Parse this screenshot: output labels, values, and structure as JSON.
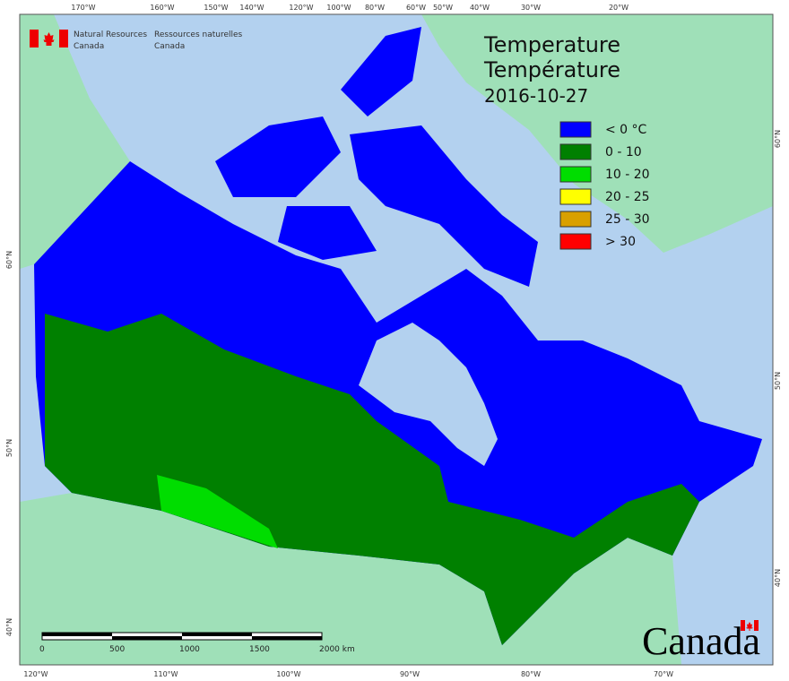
{
  "header": {
    "org_en": [
      "Natural Resources",
      "Canada"
    ],
    "org_fr": [
      "Ressources naturelles",
      "Canada"
    ],
    "title": [
      "Temperature",
      "Température"
    ],
    "date": "2016-10-27",
    "wordmark": "Canada"
  },
  "legend": [
    {
      "label": "< 0 °C",
      "color": "#0000ff"
    },
    {
      "label": "0 - 10",
      "color": "#008000"
    },
    {
      "label": "10 - 20",
      "color": "#00dd00"
    },
    {
      "label": "20 - 25",
      "color": "#ffff00"
    },
    {
      "label": "25 - 30",
      "color": "#d9a000"
    },
    {
      "label": "> 30",
      "color": "#ff0000"
    }
  ],
  "graticule": {
    "top": [
      "170°W",
      "160°W",
      "150°W",
      "140°W",
      "120°W",
      "100°W",
      "80°W",
      "60°W",
      "50°W",
      "40°W",
      "30°W",
      "20°W"
    ],
    "bottom": [
      "120°W",
      "110°W",
      "100°W",
      "90°W",
      "80°W",
      "70°W"
    ],
    "left": [
      "60°N",
      "50°N",
      "40°N"
    ],
    "right": [
      "60°N",
      "50°N",
      "40°N"
    ]
  },
  "scale_bar": [
    "0",
    "500",
    "1000",
    "1500",
    "2000 km"
  ]
}
